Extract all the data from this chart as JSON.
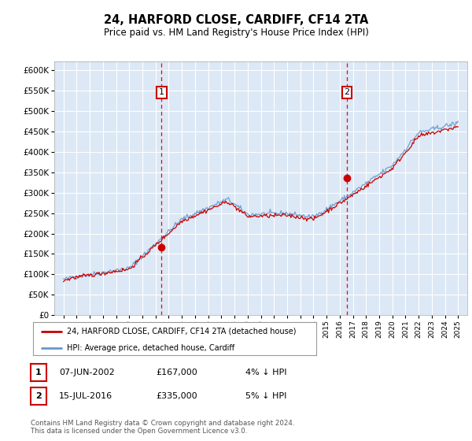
{
  "title": "24, HARFORD CLOSE, CARDIFF, CF14 2TA",
  "subtitle": "Price paid vs. HM Land Registry's House Price Index (HPI)",
  "ylim": [
    0,
    620000
  ],
  "yticks": [
    0,
    50000,
    100000,
    150000,
    200000,
    250000,
    300000,
    350000,
    400000,
    450000,
    500000,
    550000,
    600000
  ],
  "bg_color": "#dce8f5",
  "grid_color": "#ffffff",
  "sale1_year": 2002.458,
  "sale1_price": 167000,
  "sale2_year": 2016.542,
  "sale2_price": 335000,
  "hpi_line_color": "#6699cc",
  "sale_line_color": "#cc0000",
  "sale_dot_color": "#cc0000",
  "legend_label1": "24, HARFORD CLOSE, CARDIFF, CF14 2TA (detached house)",
  "legend_label2": "HPI: Average price, detached house, Cardiff",
  "footer1": "Contains HM Land Registry data © Crown copyright and database right 2024.",
  "footer2": "This data is licensed under the Open Government Licence v3.0.",
  "table_row1": [
    "1",
    "07-JUN-2002",
    "£167,000",
    "4% ↓ HPI"
  ],
  "table_row2": [
    "2",
    "15-JUL-2016",
    "£335,000",
    "5% ↓ HPI"
  ]
}
